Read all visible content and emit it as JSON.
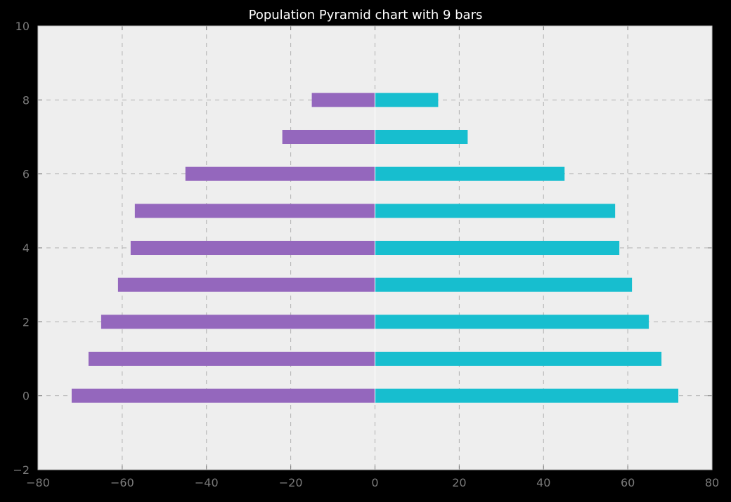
{
  "chart_data": {
    "type": "bar",
    "orientation": "horizontal",
    "title": "Population Pyramid chart with 9 bars",
    "xlabel": "",
    "ylabel": "",
    "xlim": [
      -80,
      80
    ],
    "ylim": [
      -2,
      10
    ],
    "xticks": [
      -80,
      -60,
      -40,
      -20,
      0,
      20,
      40,
      60,
      80
    ],
    "yticks": [
      -2,
      0,
      2,
      4,
      6,
      8,
      10
    ],
    "grid": true,
    "legend": "none",
    "categories": [
      0,
      1,
      2,
      3,
      4,
      5,
      6,
      7,
      8
    ],
    "series": [
      {
        "values": [
          -72,
          -68,
          -65,
          -61,
          -58,
          -57,
          -45,
          -22,
          -15
        ],
        "color": "#9467bd"
      },
      {
        "values": [
          72,
          68,
          65,
          61,
          58,
          57,
          45,
          22,
          15
        ],
        "color": "#17becf"
      }
    ],
    "colors": {
      "background": "#000000",
      "plot_background": "#eeeeee",
      "grid": "#b0b0b0",
      "tick_label": "#7a7a7a",
      "title": "#ffffff"
    }
  }
}
